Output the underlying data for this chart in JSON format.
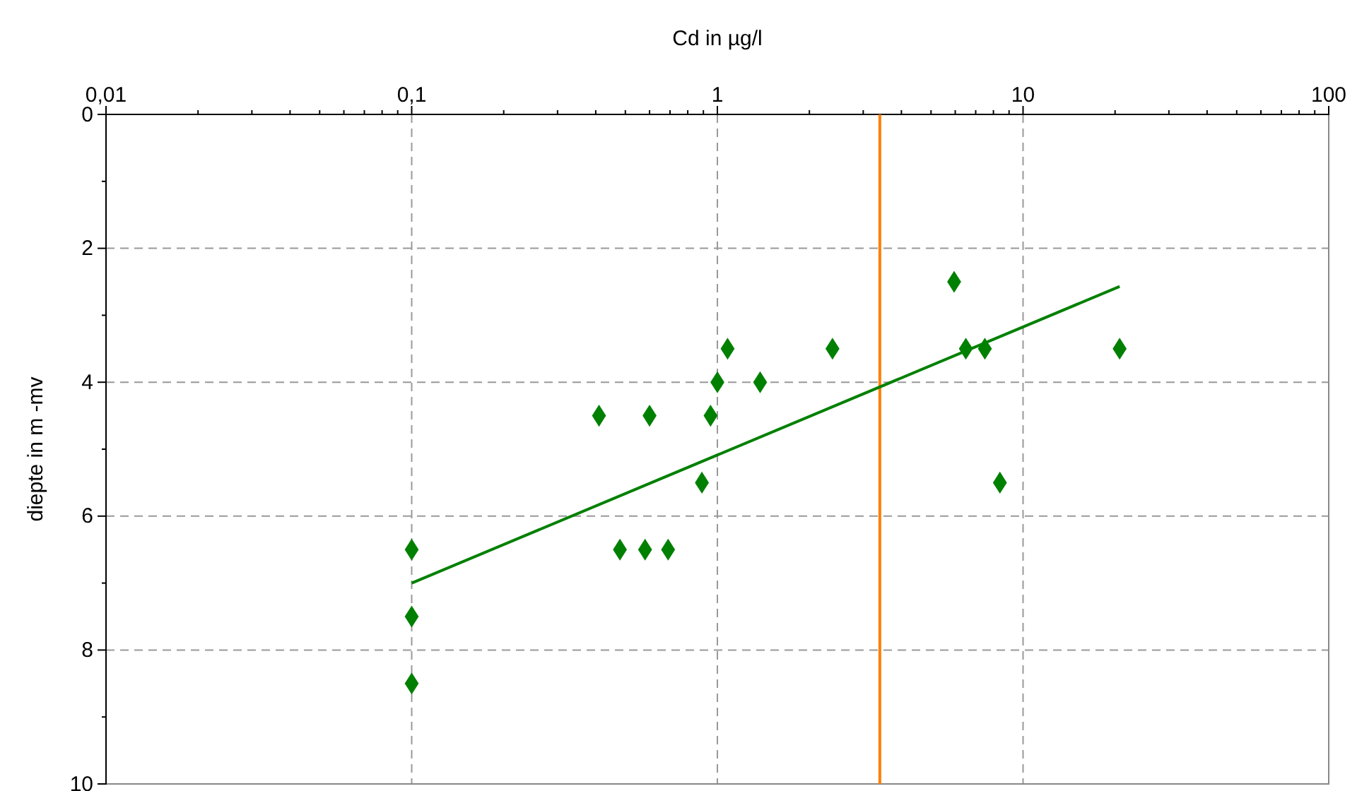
{
  "chart_data": {
    "type": "scatter",
    "xlabel": "Cd in µg/l",
    "ylabel": "diepte in m -mv",
    "log": "x",
    "grid": true,
    "marker": "diamond",
    "xlim": [
      0.01,
      100
    ],
    "ylim": [
      10,
      0
    ],
    "xticks": [
      {
        "value": 0.01,
        "label": "0,01"
      },
      {
        "value": 0.02,
        "label": null
      },
      {
        "value": 0.03,
        "label": null
      },
      {
        "value": 0.04,
        "label": null
      },
      {
        "value": 0.05,
        "label": null
      },
      {
        "value": 0.06,
        "label": null
      },
      {
        "value": 0.07,
        "label": null
      },
      {
        "value": 0.08,
        "label": null
      },
      {
        "value": 0.09,
        "label": null
      },
      {
        "value": 0.1,
        "label": "0,1"
      },
      {
        "value": 0.2,
        "label": null
      },
      {
        "value": 0.3,
        "label": null
      },
      {
        "value": 0.4,
        "label": null
      },
      {
        "value": 0.5,
        "label": null
      },
      {
        "value": 0.6,
        "label": null
      },
      {
        "value": 0.7,
        "label": null
      },
      {
        "value": 0.8,
        "label": null
      },
      {
        "value": 0.9,
        "label": null
      },
      1,
      {
        "value": 2,
        "label": null
      },
      {
        "value": 3,
        "label": null
      },
      {
        "value": 4,
        "label": null
      },
      {
        "value": 5,
        "label": null
      },
      {
        "value": 6,
        "label": null
      },
      {
        "value": 7,
        "label": null
      },
      {
        "value": 8,
        "label": null
      },
      {
        "value": 9,
        "label": null
      },
      10,
      {
        "value": 20,
        "label": null
      },
      {
        "value": 30,
        "label": null
      },
      {
        "value": 40,
        "label": null
      },
      {
        "value": 50,
        "label": null
      },
      {
        "value": 60,
        "label": null
      },
      {
        "value": 70,
        "label": null
      },
      {
        "value": 80,
        "label": null
      },
      {
        "value": 90,
        "label": null
      },
      100
    ],
    "yticks": [
      0,
      {
        "value": 1,
        "label": null
      },
      2,
      {
        "value": 3,
        "label": null
      },
      4,
      {
        "value": 5,
        "label": null
      },
      6,
      {
        "value": 7,
        "label": null
      },
      8,
      {
        "value": 9,
        "label": null
      },
      10
    ],
    "series": [
      {
        "color": "#008000",
        "x": [
          0.1,
          0.1,
          0.1,
          0.41,
          0.48,
          0.58,
          0.6,
          0.69,
          0.89,
          0.95,
          1.0,
          1.08,
          1.38,
          2.38,
          5.95,
          6.5,
          7.5,
          8.4,
          20.7
        ],
        "values": [
          6.5,
          7.5,
          8.5,
          4.5,
          6.5,
          6.5,
          4.5,
          6.5,
          5.5,
          4.5,
          4,
          3.5,
          4,
          3.5,
          2.5,
          3.5,
          3.5,
          5.5,
          3.5
        ]
      },
      {
        "type": "line",
        "color": "#008000",
        "marker": "none",
        "x": [
          0.1,
          20.7
        ],
        "values": [
          7.0,
          2.57
        ]
      }
    ],
    "ref_lines": [
      {
        "axis": "x",
        "value": 3.4,
        "color": "#ff8000"
      }
    ]
  }
}
